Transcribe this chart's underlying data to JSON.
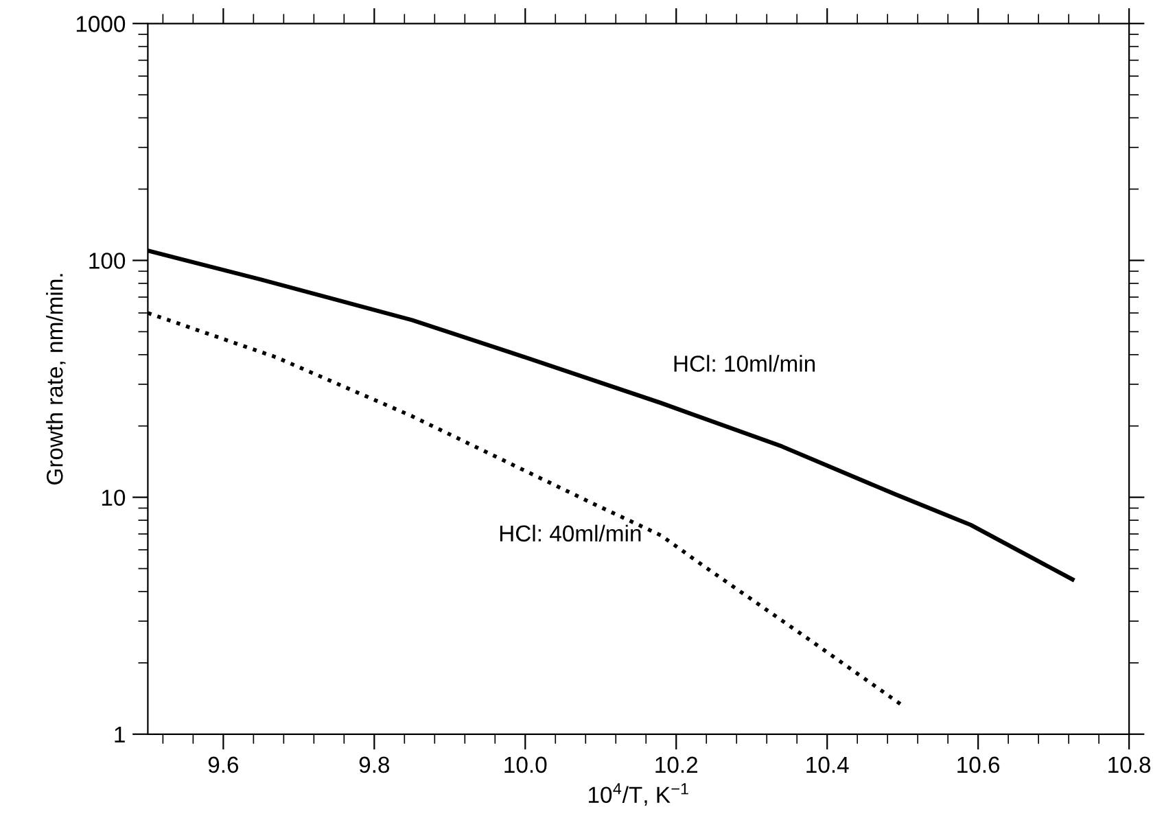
{
  "chart_data": {
    "type": "line",
    "xlabel": "10$^{4}$/T, K$^{−1}$",
    "ylabel": "Growth rate, nm/min.",
    "log": "y",
    "xlim": [
      9.5,
      10.8
    ],
    "xticks": [
      {
        "value": 9.6,
        "label": "9.6"
      },
      {
        "value": 9.8,
        "label": "9.8"
      },
      {
        "value": 10.0,
        "label": "10.0"
      },
      {
        "value": 10.2,
        "label": "10.2"
      },
      {
        "value": 10.4,
        "label": "10.4"
      },
      {
        "value": 10.6,
        "label": "10.6"
      },
      {
        "value": 10.8,
        "label": "10.8"
      }
    ],
    "ylim": [
      1,
      1000
    ],
    "yticks": [
      1,
      10,
      100,
      1000
    ],
    "series": [
      {
        "name": "HCl: 10ml/min",
        "color": "#000000",
        "line_style": "solid",
        "x": [
          9.5,
          9.65,
          9.85,
          10.0,
          10.18,
          10.34,
          10.49,
          10.59,
          10.725
        ],
        "values": [
          110,
          83,
          56,
          39,
          25,
          16.4,
          10.3,
          7.65,
          4.5
        ]
      },
      {
        "name": "HCl: 40ml/min",
        "color": "#000000",
        "line_style": "dotted",
        "x": [
          9.5,
          9.67,
          9.85,
          10.09,
          10.18,
          10.23,
          10.38,
          10.5
        ],
        "values": [
          60,
          39,
          22,
          9.4,
          6.9,
          5.3,
          2.46,
          1.32
        ]
      }
    ]
  }
}
